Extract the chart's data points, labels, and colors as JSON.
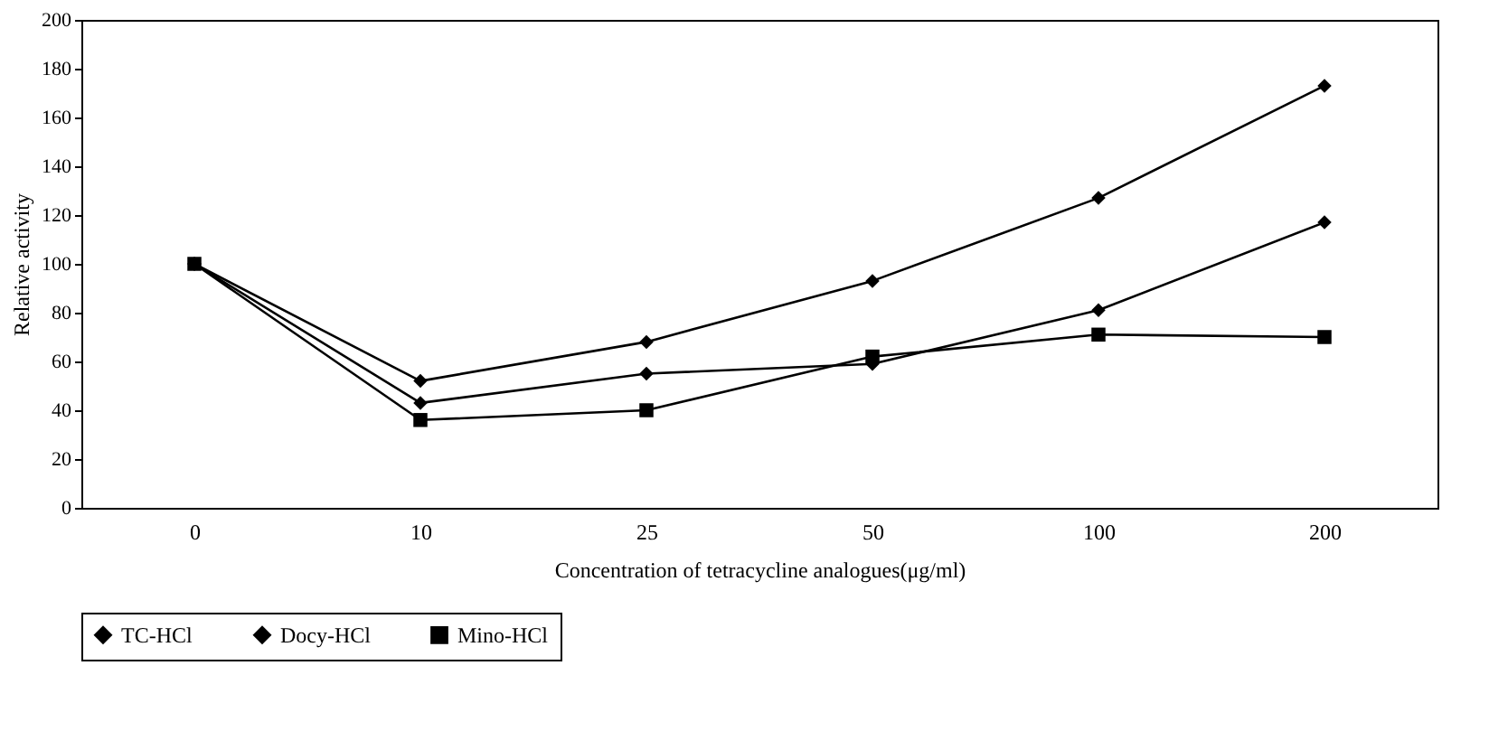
{
  "chart_data": {
    "type": "line",
    "xlabel": "Concentration of tetracycline analogues(μg/ml)",
    "ylabel": "Relative activity",
    "categories": [
      "0",
      "10",
      "25",
      "50",
      "100",
      "200"
    ],
    "ylim": [
      0,
      200
    ],
    "yticks": [
      0,
      20,
      40,
      60,
      80,
      100,
      120,
      140,
      160,
      180,
      200
    ],
    "grid": false,
    "legend": "bottom",
    "line_style": "solid",
    "series": [
      {
        "name": "TC-HCl",
        "color": "#000000",
        "marker": "diamond",
        "values": [
          100,
          52,
          68,
          93,
          127,
          173
        ]
      },
      {
        "name": "Docy-HCl",
        "color": "#000000",
        "marker": "diamond",
        "values": [
          100,
          43,
          55,
          59,
          81,
          117
        ]
      },
      {
        "name": "Mino-HCl",
        "color": "#000000",
        "marker": "square",
        "values": [
          100,
          36,
          40,
          62,
          71,
          70
        ]
      }
    ]
  }
}
